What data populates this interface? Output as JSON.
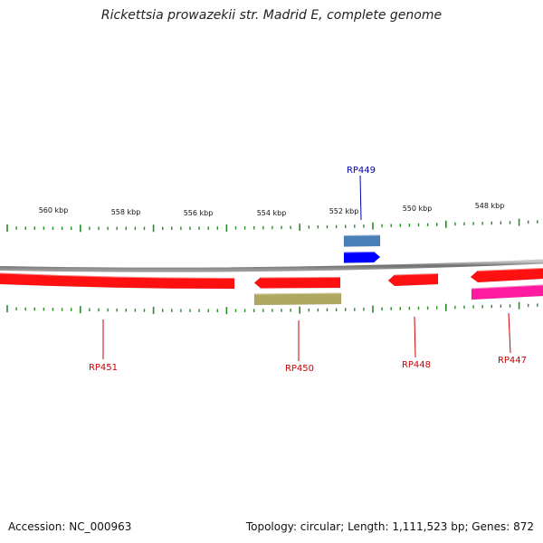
{
  "title": "Rickettsia prowazekii str. Madrid E, complete genome",
  "accession_label": "Accession: NC_000963",
  "summary_label": "Topology: circular; Length: 1,111,523 bp; Genes: 872",
  "colors": {
    "backbone": "#7f7f7f",
    "tick": "#2a8a2a",
    "gene_red": "#ff1010",
    "gene_blue": "#0000ff",
    "gene_steel": "#4a7fb8",
    "gene_khaki": "#b0a860",
    "gene_magenta": "#ff1aa0",
    "label_red": "#cc0000",
    "label_blue": "#0000aa"
  },
  "scale": {
    "tick_labels": [
      "560 kbp",
      "558 kbp",
      "556 kbp",
      "554 kbp",
      "552 kbp",
      "550 kbp",
      "548 kbp"
    ]
  },
  "features": [
    {
      "id": "rp451",
      "label": "RP451",
      "color": "gene_red",
      "strand": "minus",
      "row": "minus1",
      "labeled": true
    },
    {
      "id": "rp450",
      "label": "RP450",
      "color": "gene_red",
      "strand": "minus",
      "row": "minus1",
      "labeled": true
    },
    {
      "id": "rp450-khaki",
      "label": "",
      "color": "gene_khaki",
      "strand": "minus",
      "row": "minus2",
      "labeled": false
    },
    {
      "id": "rp449-steel",
      "label": "",
      "color": "gene_steel",
      "strand": "plus",
      "row": "plus2",
      "labeled": false
    },
    {
      "id": "rp449",
      "label": "RP449",
      "color": "gene_blue",
      "strand": "plus",
      "row": "plus1",
      "labeled": true
    },
    {
      "id": "rp448",
      "label": "RP448",
      "color": "gene_red",
      "strand": "minus",
      "row": "minus1",
      "labeled": true
    },
    {
      "id": "rp447",
      "label": "RP447",
      "color": "gene_red",
      "strand": "minus",
      "row": "minus1",
      "labeled": true
    },
    {
      "id": "rp447-magenta",
      "label": "",
      "color": "gene_magenta",
      "strand": "minus",
      "row": "minus2",
      "labeled": false
    }
  ]
}
